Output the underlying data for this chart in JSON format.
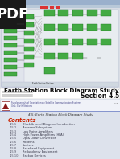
{
  "title_main": "Earth Station Block Diagram Study",
  "title_sub": "Section 4.5",
  "pdf_label": "PDF",
  "header_subtitle": "4.5: Earth Station Block Diagram Study",
  "course_line1": "Fundamentals of Geostationary Satellite Communication Systems",
  "course_line2": "Unit: Earth Stations",
  "contents_label": "Contents",
  "contents_items": [
    [
      "4.5.1",
      "Block & Level Diagram Introduction"
    ],
    [
      "4.5.2",
      "Antenna Subsystem"
    ],
    [
      "4.5.3",
      "Low Noise Amplifiers"
    ],
    [
      "4.5.4",
      "High Power Amplifiers (HPA)"
    ],
    [
      "4.5.5",
      "Up & Down Conversion"
    ],
    [
      "4.5.6",
      "Modems"
    ],
    [
      "4.5.7",
      "Exciters"
    ],
    [
      "4.5.8",
      "Baseband Equipment"
    ],
    [
      "4.5.9",
      "Redundancy Equipment"
    ],
    [
      "4.5.10",
      "Backup Devices"
    ]
  ],
  "diagram_bg": "#d8dce4",
  "diagram_inner_bg": "#e8ecf0",
  "title_band_bg": "#ffffff",
  "lower_bg": "#dde2ec",
  "header_box_bg": "#f0f2f8",
  "header_box_border": "#cccccc",
  "pdf_bg": "#1a1a1a",
  "pdf_color": "#ffffff",
  "logo_bg": "#ffffff",
  "logo_border": "#8B1a1a",
  "logo_tri": "#8B1a1a",
  "logo_text": "#8B1a1a",
  "header_text_color": "#444488",
  "separator_color": "#7788cc",
  "subtitle_color": "#333333",
  "contents_color": "#cc2200",
  "item_num_color": "#555566",
  "item_text_color": "#333344",
  "win_bar_color": "#9ab0cc",
  "green_box": "#44aa44",
  "green_border": "#227722"
}
